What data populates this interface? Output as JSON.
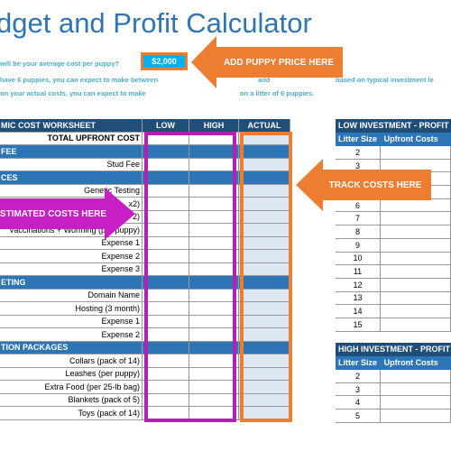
{
  "title": "dget and Profit Calculator",
  "intro": {
    "line1": "will be your average cost per puppy?",
    "price": "$2,000",
    "line2a": "have 6 puppies, you can expect to make between",
    "line2b": "and",
    "line2c": "based on typical investment le",
    "line3a": "on your actual costs, you can expect to make",
    "line3b": "on a litter of 6 puppies."
  },
  "callouts": {
    "price": "ADD PUPPY PRICE HERE",
    "track": "TRACK COSTS HERE",
    "estimated": "STIMATED COSTS HERE"
  },
  "worksheet": {
    "headers": [
      "MIC COST WORKSHEET",
      "LOW",
      "HIGH",
      "ACTUAL"
    ],
    "total_label": "TOTAL UPFRONT COST",
    "sections": [
      {
        "name": "FEE",
        "items": [
          "Stud Fee"
        ]
      },
      {
        "name": "CES",
        "items": [
          "Genetic Testing",
          "x2)",
          "2)",
          "Vaccinations + Worming (per puppy)",
          "Expense 1",
          "Expense 2",
          "Expense 3"
        ]
      },
      {
        "name": "ETING",
        "items": [
          "Domain Name",
          "Hosting (3 month)",
          "Expense 1",
          "Expense 2"
        ]
      },
      {
        "name": "TION PACKAGES",
        "items": [
          "Collars (pack of 14)",
          "Leashes (per puppy)",
          "Extra Food (per 25-lb bag)",
          "Blankets (pack of 5)",
          "Toys (pack of 14)"
        ]
      }
    ]
  },
  "low_table": {
    "title": "LOW INVESTMENT - PROFIT",
    "col1": "Litter Size",
    "col2": "Upfront Costs",
    "sizes": [
      "2",
      "3",
      "",
      "",
      "6",
      "7",
      "8",
      "9",
      "10",
      "11",
      "12",
      "13",
      "14",
      "15"
    ]
  },
  "high_table": {
    "title": "HIGH INVESTMENT - PROFIT",
    "col1": "Litter Size",
    "col2": "Upfront Costs",
    "sizes": [
      "2",
      "3",
      "4",
      "5"
    ]
  }
}
